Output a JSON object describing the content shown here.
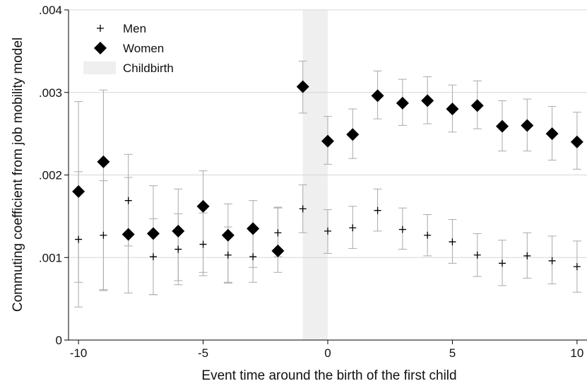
{
  "chart_data": {
    "type": "scatter",
    "xlabel": "Event time around the birth of the first child",
    "ylabel": "Commuting coefficient from job mobility model",
    "xlim": [
      -10.4,
      10.4
    ],
    "ylim": [
      0,
      0.004
    ],
    "x_ticks": [
      -10,
      -5,
      0,
      5,
      10
    ],
    "x_tick_labels": [
      "-10",
      "-5",
      "0",
      "5",
      "10"
    ],
    "y_ticks": [
      0,
      0.001,
      0.002,
      0.003,
      0.004
    ],
    "y_tick_labels": [
      "0",
      ".001",
      ".002",
      ".003",
      ".004"
    ],
    "grid": "horizontal",
    "legend_position": "top-left",
    "shaded_region": {
      "label": "Childbirth",
      "x_range": [
        -1,
        0
      ],
      "color": "#efefef"
    },
    "colors": {
      "marker": "#000000",
      "error_bar": "#aaaaaa",
      "grid": "#d6d6d6",
      "shade": "#efefef"
    },
    "series": [
      {
        "name": "Men",
        "marker": "plus",
        "x": [
          -10,
          -9,
          -8,
          -7,
          -6,
          -5,
          -4,
          -3,
          -2,
          -1,
          0,
          1,
          2,
          3,
          4,
          5,
          6,
          7,
          8,
          9,
          10
        ],
        "y": [
          0.00122,
          0.00127,
          0.00169,
          0.00101,
          0.0011,
          0.00116,
          0.00103,
          0.00101,
          0.0013,
          0.00159,
          0.00132,
          0.00136,
          0.00157,
          0.00134,
          0.00127,
          0.00119,
          0.00103,
          0.00093,
          0.00102,
          0.00096,
          0.00089
        ],
        "ci_low": [
          0.0004,
          0.0006,
          0.00114,
          0.00055,
          0.00067,
          0.00078,
          0.00069,
          0.0007,
          0.00101,
          0.0013,
          0.00105,
          0.00111,
          0.00132,
          0.0011,
          0.00102,
          0.00093,
          0.00077,
          0.00066,
          0.00075,
          0.00068,
          0.00058
        ],
        "ci_high": [
          0.00204,
          0.00193,
          0.00225,
          0.00147,
          0.00153,
          0.00154,
          0.00137,
          0.00132,
          0.0016,
          0.00188,
          0.00158,
          0.00162,
          0.00183,
          0.0016,
          0.00152,
          0.00146,
          0.00129,
          0.00121,
          0.0013,
          0.00126,
          0.0012
        ]
      },
      {
        "name": "Women",
        "marker": "diamond",
        "x": [
          -10,
          -9,
          -8,
          -7,
          -6,
          -5,
          -4,
          -3,
          -2,
          -1,
          0,
          1,
          2,
          3,
          4,
          5,
          6,
          7,
          8,
          9,
          10
        ],
        "y": [
          0.0018,
          0.00216,
          0.00128,
          0.00129,
          0.00132,
          0.00162,
          0.00127,
          0.00135,
          0.00108,
          0.00307,
          0.00241,
          0.00249,
          0.00296,
          0.00287,
          0.0029,
          0.0028,
          0.00284,
          0.00259,
          0.0026,
          0.0025,
          0.0024
        ],
        "ci_low": [
          0.0007,
          0.00061,
          0.00057,
          0.00055,
          0.00072,
          0.00082,
          0.0007,
          0.00088,
          0.00082,
          0.00275,
          0.00213,
          0.0022,
          0.00268,
          0.0026,
          0.00262,
          0.00252,
          0.00256,
          0.00229,
          0.00229,
          0.00218,
          0.00207
        ],
        "ci_high": [
          0.00289,
          0.00303,
          0.00197,
          0.00187,
          0.00183,
          0.00205,
          0.00165,
          0.00169,
          0.00161,
          0.00338,
          0.00271,
          0.0028,
          0.00326,
          0.00316,
          0.00319,
          0.00309,
          0.00314,
          0.0029,
          0.00292,
          0.00283,
          0.00276
        ]
      }
    ]
  }
}
